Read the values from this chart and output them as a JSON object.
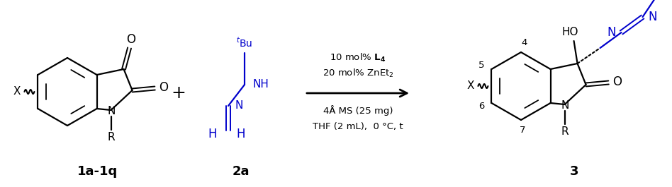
{
  "bg_color": "#ffffff",
  "black": "#000000",
  "blue": "#0000cc",
  "label_1": "1a-1q",
  "label_2": "2a",
  "label_3": "3",
  "cond1": "10 mol% $\\mathbf{L_4}$",
  "cond2": "20 mol% ZnEt$_2$",
  "cond3": "4Å MS (25 mg)",
  "cond4": "THF (2 mL),  0 °C, t"
}
